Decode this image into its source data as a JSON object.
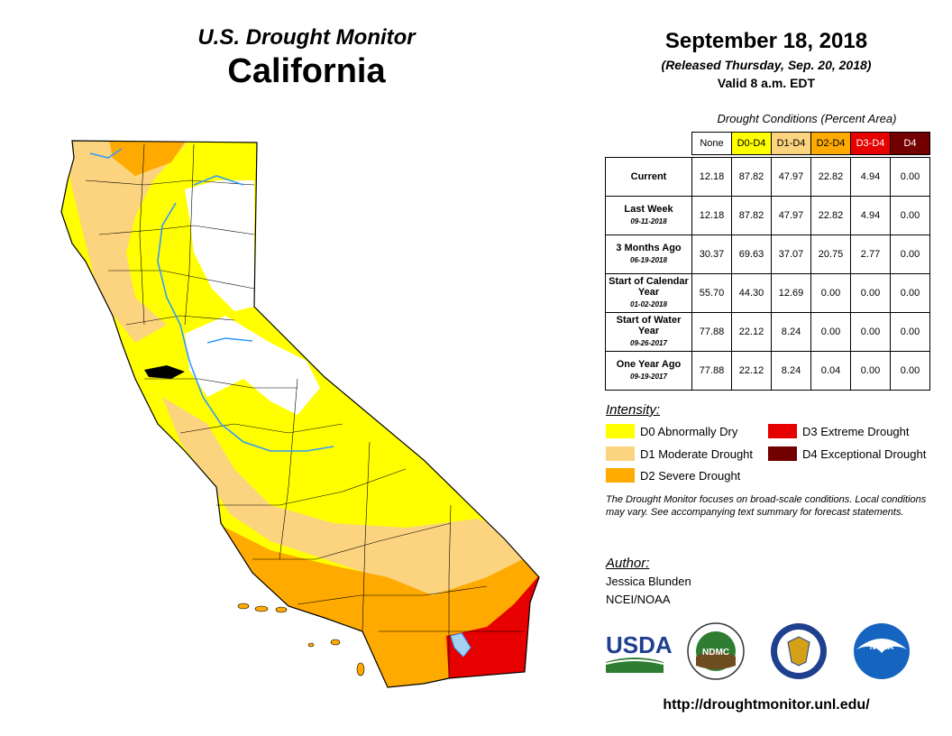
{
  "header": {
    "monitor_title": "U.S. Drought Monitor",
    "state": "California"
  },
  "release": {
    "date": "September 18, 2018",
    "released": "(Released Thursday, Sep. 20, 2018)",
    "valid": "Valid 8 a.m. EDT"
  },
  "table": {
    "caption": "Drought Conditions (Percent Area)",
    "columns": [
      {
        "label": "None",
        "color": "#ffffff",
        "text_color": "#000000"
      },
      {
        "label": "D0-D4",
        "color": "#ffff00",
        "text_color": "#000000"
      },
      {
        "label": "D1-D4",
        "color": "#fcd37f",
        "text_color": "#000000"
      },
      {
        "label": "D2-D4",
        "color": "#ffaa00",
        "text_color": "#000000"
      },
      {
        "label": "D3-D4",
        "color": "#e60000",
        "text_color": "#ffffff"
      },
      {
        "label": "D4",
        "color": "#730000",
        "text_color": "#ffffff"
      }
    ],
    "rows": [
      {
        "label": "Current",
        "sublabel": "",
        "values": [
          "12.18",
          "87.82",
          "47.97",
          "22.82",
          "4.94",
          "0.00"
        ]
      },
      {
        "label": "Last Week",
        "sublabel": "09-11-2018",
        "values": [
          "12.18",
          "87.82",
          "47.97",
          "22.82",
          "4.94",
          "0.00"
        ]
      },
      {
        "label": "3 Months Ago",
        "sublabel": "06-19-2018",
        "values": [
          "30.37",
          "69.63",
          "37.07",
          "20.75",
          "2.77",
          "0.00"
        ]
      },
      {
        "label": "Start of Calendar Year",
        "sublabel": "01-02-2018",
        "values": [
          "55.70",
          "44.30",
          "12.69",
          "0.00",
          "0.00",
          "0.00"
        ]
      },
      {
        "label": "Start of Water Year",
        "sublabel": "09-26-2017",
        "values": [
          "77.88",
          "22.12",
          "8.24",
          "0.00",
          "0.00",
          "0.00"
        ]
      },
      {
        "label": "One Year Ago",
        "sublabel": "09-19-2017",
        "values": [
          "77.88",
          "22.12",
          "8.24",
          "0.04",
          "0.00",
          "0.00"
        ]
      }
    ]
  },
  "legend": {
    "title": "Intensity:",
    "items": [
      {
        "label": "D0 Abnormally Dry",
        "color": "#ffff00"
      },
      {
        "label": "D1 Moderate Drought",
        "color": "#fcd37f"
      },
      {
        "label": "D2 Severe Drought",
        "color": "#ffaa00"
      },
      {
        "label": "D3 Extreme Drought",
        "color": "#e60000"
      },
      {
        "label": "D4 Exceptional Drought",
        "color": "#730000"
      }
    ]
  },
  "note": "The Drought Monitor focuses on broad-scale conditions. Local conditions may vary. See accompanying text summary for forecast statements.",
  "author": {
    "title": "Author:",
    "name": "Jessica Blunden",
    "org": "NCEI/NOAA"
  },
  "logos": {
    "usda": "USDA",
    "ndmc": "NDMC",
    "noaa": "NOAA"
  },
  "url": "http://droughtmonitor.unl.edu/"
}
